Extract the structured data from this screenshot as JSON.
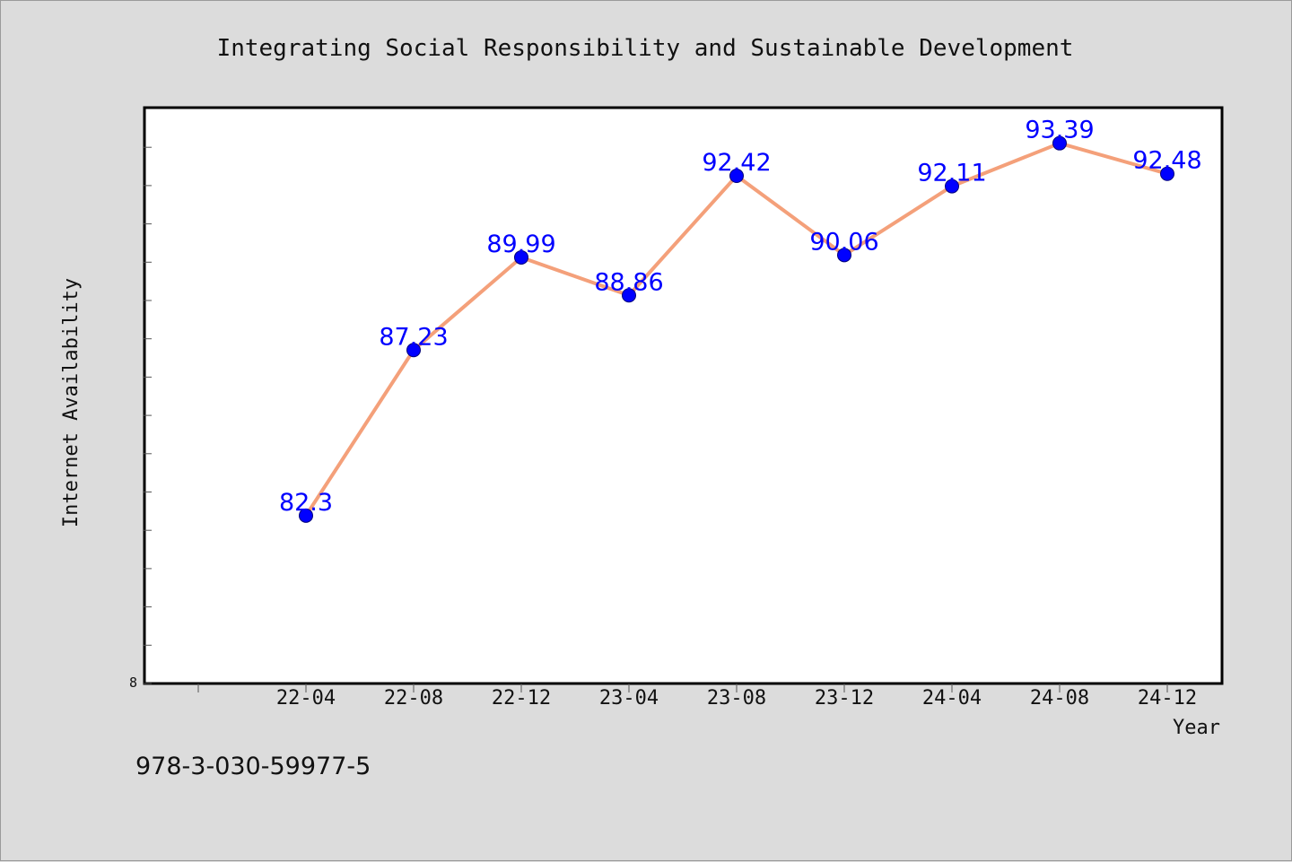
{
  "chart_data": {
    "type": "line",
    "title": "Integrating Social Responsibility and Sustainable Development",
    "xlabel": "Year",
    "ylabel": "Internet Availability",
    "categories": [
      "22-04",
      "22-08",
      "22-12",
      "23-04",
      "23-08",
      "23-12",
      "24-04",
      "24-08",
      "24-12"
    ],
    "series": [
      {
        "values": [
          82.3,
          87.23,
          89.99,
          88.86,
          92.42,
          90.06,
          92.11,
          93.39,
          92.48
        ],
        "value_labels": [
          "82.3",
          "87.23",
          "89.99",
          "88.86",
          "92.42",
          "90.06",
          "92.11",
          "93.39",
          "92.48"
        ]
      }
    ],
    "ylim": [
      77.3,
      94.45
    ],
    "y_min_tick_label": "8",
    "grid": false,
    "line_color": "#f4a07a",
    "marker_color": "#0000ff"
  },
  "footer_text": "978-3-030-59977-5"
}
